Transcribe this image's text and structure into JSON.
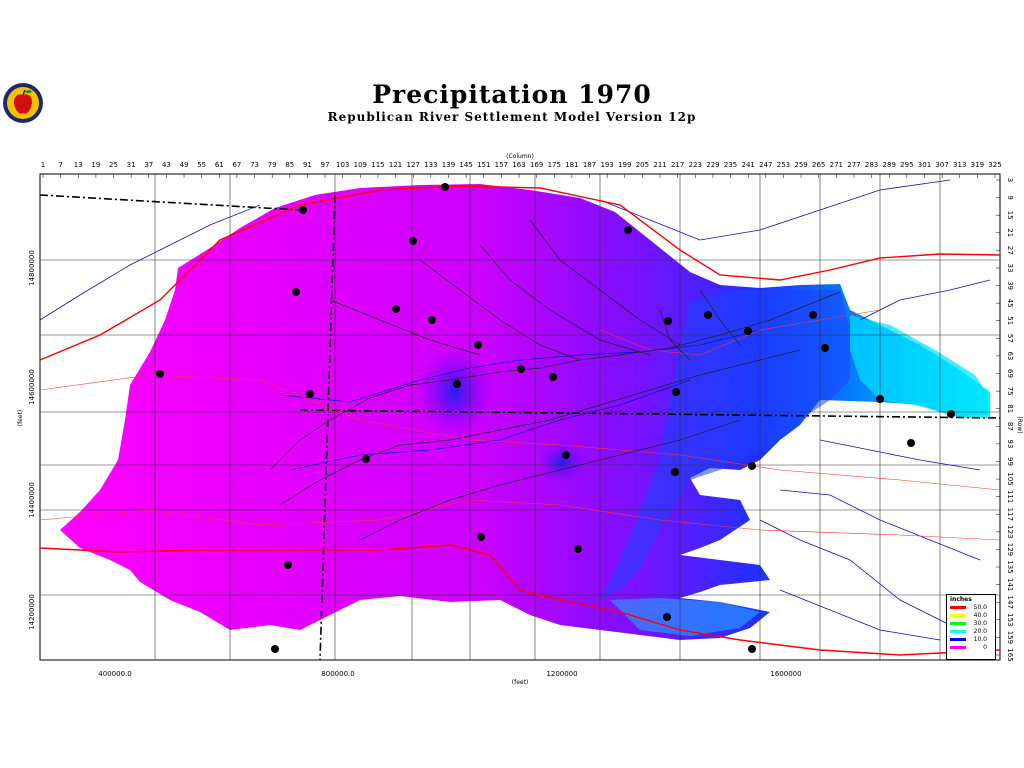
{
  "title": "Precipitation  1970",
  "subtitle": "Republican  River  Settlement  Model  Version  12p",
  "top_axis_title": "(Column)",
  "right_axis_title": "(Row)",
  "left_axis_title": "(feet)",
  "bottom_axis_title": "(feet)",
  "column_ticks": [
    "1",
    "7",
    "13",
    "19",
    "25",
    "31",
    "37",
    "43",
    "49",
    "55",
    "61",
    "67",
    "73",
    "79",
    "85",
    "91",
    "97",
    "103",
    "109",
    "115",
    "121",
    "127",
    "133",
    "139",
    "145",
    "151",
    "157",
    "163",
    "169",
    "175",
    "181",
    "187",
    "193",
    "199",
    "205",
    "211",
    "217",
    "223",
    "229",
    "235",
    "241",
    "247",
    "253",
    "259",
    "265",
    "271",
    "277",
    "283",
    "289",
    "295",
    "301",
    "307",
    "313",
    "319",
    "325"
  ],
  "row_ticks": [
    "3",
    "9",
    "15",
    "21",
    "27",
    "33",
    "39",
    "45",
    "51",
    "57",
    "63",
    "69",
    "75",
    "81",
    "87",
    "93",
    "99",
    "105",
    "111",
    "117",
    "123",
    "129",
    "135",
    "141",
    "147",
    "153",
    "159",
    "165"
  ],
  "northing_ticks": [
    "14800000",
    "14600000",
    "14400000",
    "14200000"
  ],
  "easting_ticks": [
    "400000.0",
    "800000.0",
    "1200000",
    "1600000"
  ],
  "legend": {
    "title": "inches",
    "entries": [
      {
        "label": "50.0",
        "color": "#ff0000"
      },
      {
        "label": "40.0",
        "color": "#ffff00"
      },
      {
        "label": "30.0",
        "color": "#00ff00"
      },
      {
        "label": "20.0",
        "color": "#00ffff"
      },
      {
        "label": "10.0",
        "color": "#0000ff"
      },
      {
        "label": "0",
        "color": "#ff00ff"
      }
    ]
  },
  "colors": {
    "low": "#ff00ff",
    "mid": "#8800ff",
    "high": "#0000ff",
    "cyan": "#00ccff",
    "roads": "#ff0000",
    "rivers": "#0000cc"
  }
}
